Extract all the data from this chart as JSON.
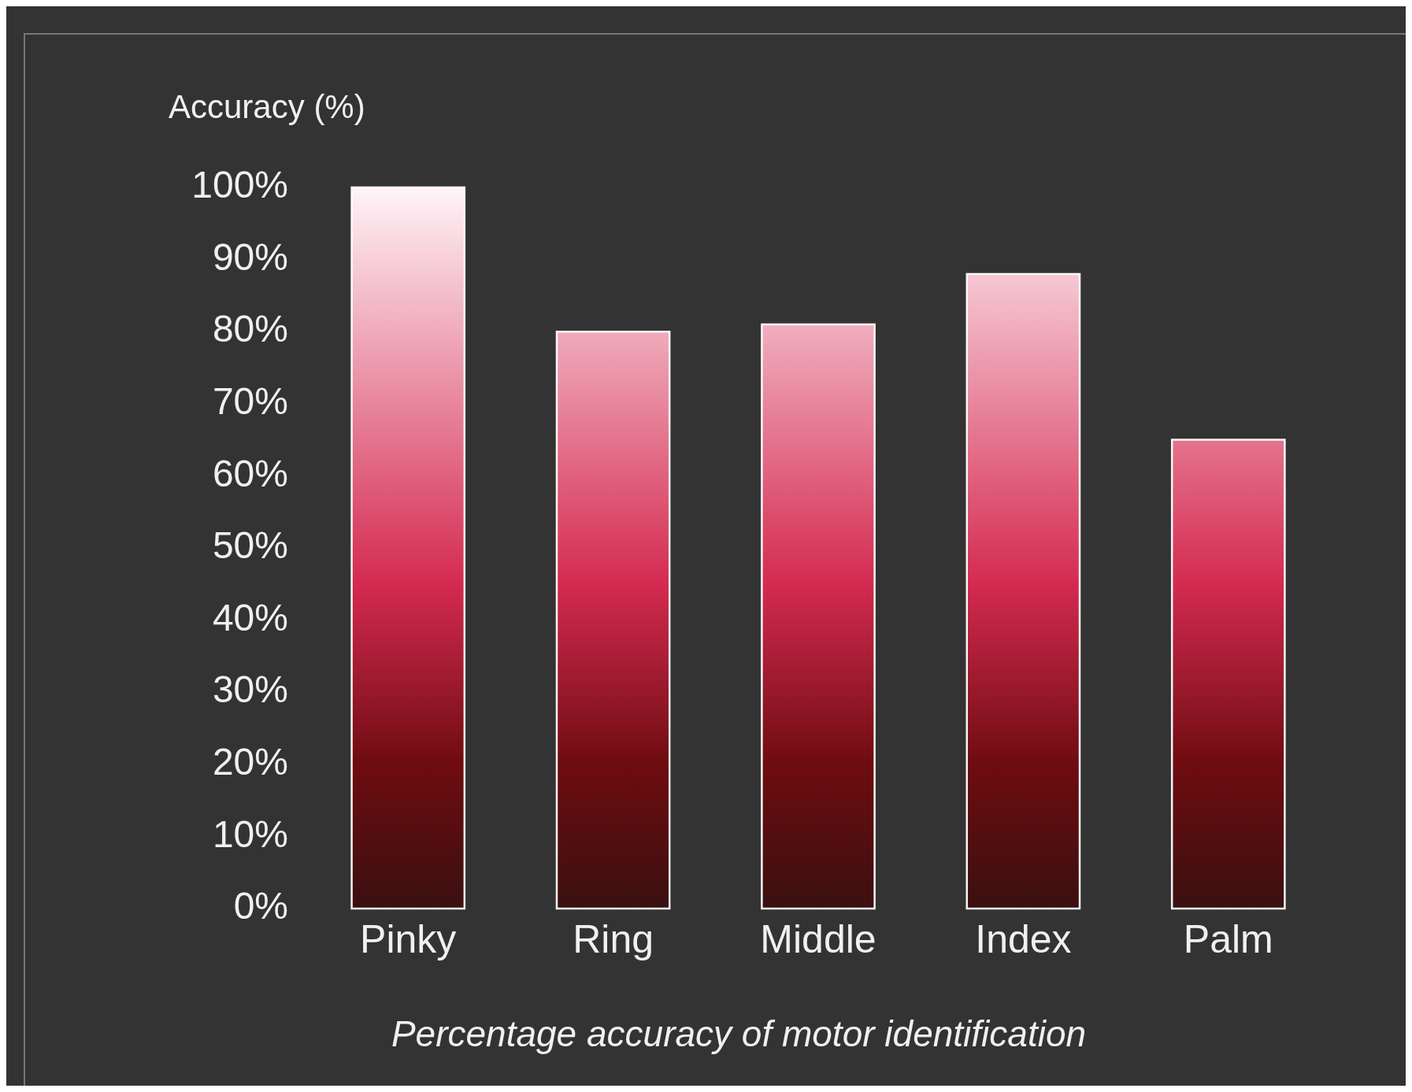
{
  "chart_data": {
    "type": "bar",
    "ylabel": "Accuracy (%)",
    "categories": [
      "Pinky",
      "Ring",
      "Middle",
      "Index",
      "Palm"
    ],
    "values": [
      100,
      80,
      81,
      88,
      65
    ],
    "color": "#d42a50",
    "ylim": [
      0,
      100
    ],
    "yticks": [
      {
        "value": 0,
        "label": "0%"
      },
      {
        "value": 10,
        "label": "10%"
      },
      {
        "value": 20,
        "label": "20%"
      },
      {
        "value": 30,
        "label": "30%"
      },
      {
        "value": 40,
        "label": "40%"
      },
      {
        "value": 50,
        "label": "50%"
      },
      {
        "value": 60,
        "label": "60%"
      },
      {
        "value": 70,
        "label": "70%"
      },
      {
        "value": 80,
        "label": "80%"
      },
      {
        "value": 90,
        "label": "90%"
      },
      {
        "value": 100,
        "label": "100%"
      }
    ],
    "grid": false,
    "legend": false,
    "annotations": [
      "Percentage accuracy of motor identification"
    ]
  }
}
